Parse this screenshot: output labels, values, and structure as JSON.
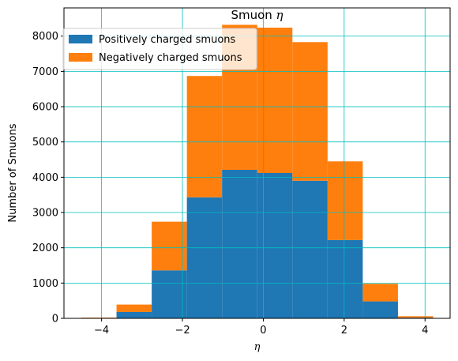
{
  "chart_data": {
    "type": "bar",
    "subtype": "stacked-histogram",
    "title_text": "Smuon ",
    "title_symbol": "η",
    "xlabel": "η",
    "ylabel": "Number of Smuons",
    "bin_edges": [
      -4.5,
      -3.63,
      -2.76,
      -1.89,
      -1.02,
      -0.15,
      0.72,
      1.59,
      2.46,
      3.33,
      4.2
    ],
    "series": [
      {
        "name": "Positively charged smuons",
        "color": "#1f77b4",
        "values": [
          10,
          180,
          1360,
          3430,
          4210,
          4120,
          3900,
          2220,
          480,
          20
        ]
      },
      {
        "name": "Negatively charged smuons",
        "color": "#ff7f0e",
        "values": [
          10,
          210,
          1380,
          3440,
          4110,
          4120,
          3930,
          2230,
          500,
          40
        ]
      }
    ],
    "xlim": [
      -4.93,
      4.62
    ],
    "ylim": [
      0,
      8800
    ],
    "xticks": [
      -4,
      -2,
      0,
      2,
      4
    ],
    "yticks": [
      0,
      1000,
      2000,
      3000,
      4000,
      5000,
      6000,
      7000,
      8000
    ],
    "grid": true,
    "grid_color": "#00bfbf",
    "legend_position": "top-left"
  }
}
